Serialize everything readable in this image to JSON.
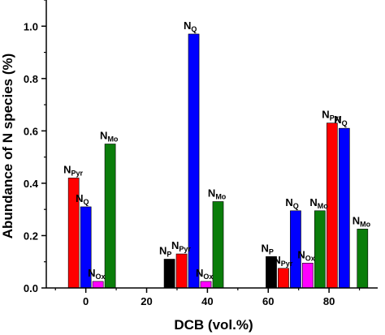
{
  "chart_data": {
    "type": "bar",
    "xlabel": "DCB (vol.%)",
    "ylabel": "Abundance of N species (%)",
    "xlim": [
      -13,
      96
    ],
    "ylim": [
      0,
      1.1
    ],
    "xticks": [
      0,
      20,
      40,
      60,
      80
    ],
    "yticks": [
      0.0,
      0.2,
      0.4,
      0.6,
      0.8,
      1.0
    ],
    "bar_width": 3.5,
    "colors": {
      "N_P": "#000000",
      "N_Pyr": "#ff0000",
      "N_Q": "#0000ff",
      "N_Ox": "#ff00ff",
      "N_Mo": "#0a7d0a"
    },
    "groups": [
      {
        "x": 0,
        "bars": [
          {
            "species": "N_Pyr",
            "main": "N",
            "sub": "Pyr",
            "x": -4,
            "value": 0.42
          },
          {
            "species": "N_Q",
            "main": "N",
            "sub": "Q",
            "x": 0,
            "value": 0.31
          },
          {
            "species": "N_Ox",
            "main": "N",
            "sub": "Ox",
            "x": 4,
            "value": 0.025
          },
          {
            "species": "N_Mo",
            "main": "N",
            "sub": "Mo",
            "x": 8,
            "value": 0.55
          }
        ]
      },
      {
        "x": 30,
        "bars": [
          {
            "species": "N_P",
            "main": "N",
            "sub": "P",
            "x": 27.5,
            "value": 0.11
          },
          {
            "species": "N_Pyr",
            "main": "N",
            "sub": "Pyr",
            "x": 31.5,
            "value": 0.13
          },
          {
            "species": "N_Q",
            "main": "N",
            "sub": "Q",
            "x": 35.5,
            "value": 0.97
          },
          {
            "species": "N_Ox",
            "main": "N",
            "sub": "Ox",
            "x": 39.5,
            "value": 0.025
          },
          {
            "species": "N_Mo",
            "main": "N",
            "sub": "Mo",
            "x": 43.5,
            "value": 0.33
          }
        ]
      },
      {
        "x": 60,
        "bars": [
          {
            "species": "N_P",
            "main": "N",
            "sub": "P",
            "x": 61,
            "value": 0.12
          },
          {
            "species": "N_Pyr",
            "main": "N",
            "sub": "Pyr",
            "x": 65,
            "value": 0.075
          },
          {
            "species": "N_Q",
            "main": "N",
            "sub": "Q",
            "x": 69,
            "value": 0.295
          },
          {
            "species": "N_Ox",
            "main": "N",
            "sub": "Ox",
            "x": 73,
            "value": 0.095
          },
          {
            "species": "N_Mo",
            "main": "N",
            "sub": "Mo",
            "x": 77,
            "value": 0.295
          }
        ]
      },
      {
        "x": 80,
        "bars": [
          {
            "species": "N_Pyr",
            "main": "N",
            "sub": "Pyr",
            "x": 81,
            "value": 0.63
          },
          {
            "species": "N_Q",
            "main": "N",
            "sub": "Q",
            "x": 85,
            "value": 0.61
          },
          {
            "species": "N_Mo",
            "main": "N",
            "sub": "Mo",
            "x": 91,
            "value": 0.225
          }
        ]
      }
    ]
  }
}
